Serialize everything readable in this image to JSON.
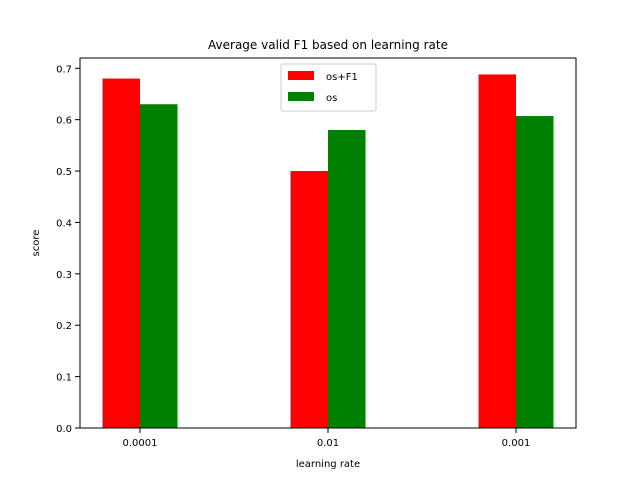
{
  "chart_data": {
    "type": "bar",
    "title": "Average valid F1 based on learning rate",
    "xlabel": "learning rate",
    "ylabel": "score",
    "categories": [
      "0.0001",
      "0.01",
      "0.001"
    ],
    "series": [
      {
        "name": "os+F1",
        "color": "#ff0000",
        "values": [
          0.68,
          0.5,
          0.688
        ]
      },
      {
        "name": "os",
        "color": "#008000",
        "values": [
          0.63,
          0.58,
          0.607
        ]
      }
    ],
    "ylim": [
      0,
      0.72
    ],
    "yticks": [
      "0.0",
      "0.1",
      "0.2",
      "0.3",
      "0.4",
      "0.5",
      "0.6",
      "0.7"
    ],
    "grid": false,
    "legend_position": "top-center"
  }
}
